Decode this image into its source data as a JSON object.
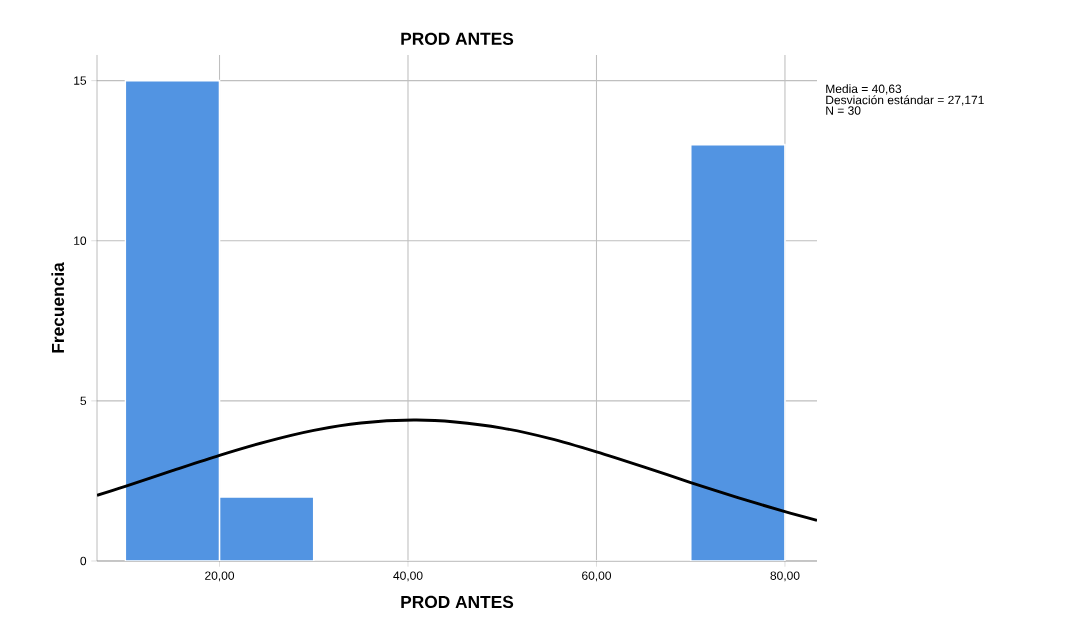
{
  "chart_data": {
    "type": "histogram",
    "title": "PROD ANTES",
    "xlabel": "PROD ANTES",
    "ylabel": "Frecuencia",
    "bins": [
      10,
      20,
      30,
      40,
      50,
      60,
      70,
      80
    ],
    "values": [
      15,
      2,
      0,
      0,
      0,
      0,
      13
    ],
    "color": "#5294e2",
    "series": [
      {
        "type": "line",
        "color": "#000000",
        "x": [
          7,
          10,
          15,
          20,
          25,
          30,
          35,
          40.6,
          45,
          50,
          55,
          60,
          65,
          70,
          75,
          80,
          83.4
        ],
        "values": [
          2.05,
          2.33,
          2.82,
          3.3,
          3.73,
          4.08,
          4.31,
          4.4,
          4.34,
          4.15,
          3.83,
          3.41,
          2.94,
          2.45,
          1.98,
          1.54,
          1.27
        ]
      }
    ],
    "xlim": [
      7,
      83.4
    ],
    "ylim": [
      0,
      15.8
    ],
    "xticks": [
      {
        "value": 20,
        "label": "20,00"
      },
      {
        "value": 40,
        "label": "40,00"
      },
      {
        "value": 60,
        "label": "60,00"
      },
      {
        "value": 80,
        "label": "80,00"
      }
    ],
    "yticks": [
      0,
      5,
      10,
      15
    ],
    "grid": true,
    "annotations": [
      "Media = 40,63",
      "Desviación estándar = 27,171",
      "N = 30"
    ]
  }
}
